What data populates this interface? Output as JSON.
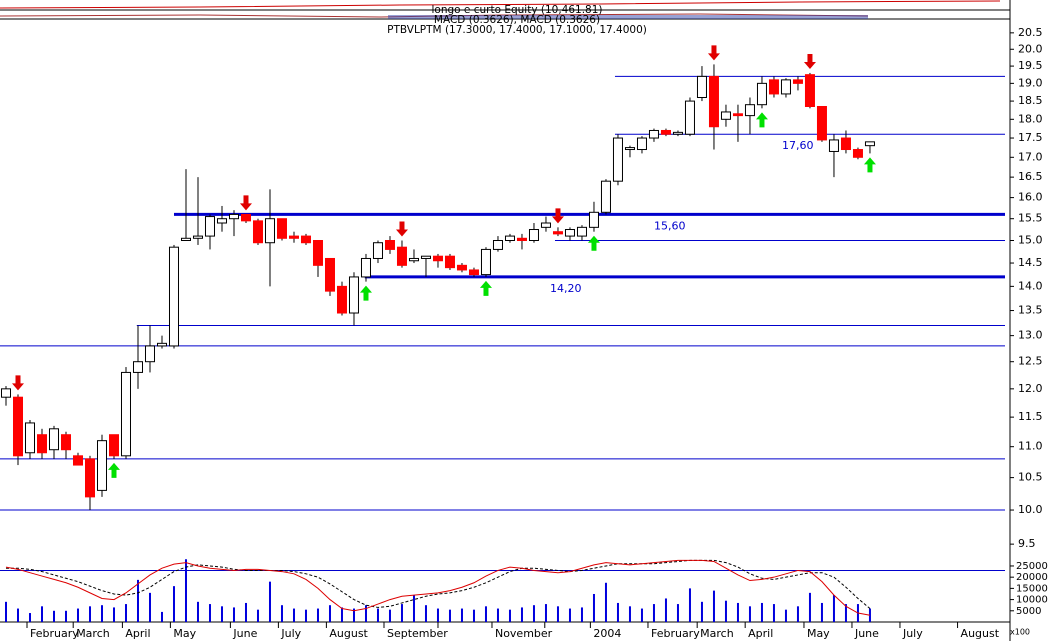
{
  "chart_data": {
    "type": "candlestick",
    "title": "longo e curto Equity (10,461.81)",
    "subtitle": "MACD (0.3626), MACD (0.3626)",
    "series_label": "PTBVLPTM (17.3000, 17.4000, 17.1000, 17.4000)",
    "log_scale": true,
    "xlim": [
      -0.5,
      83.67
    ],
    "xticks": [
      {
        "value": 1.75,
        "label": "February"
      },
      {
        "value": 5.6,
        "label": "March"
      },
      {
        "value": 9.7,
        "label": "April"
      },
      {
        "value": 13.7,
        "label": "May"
      },
      {
        "value": 18.7,
        "label": "June"
      },
      {
        "value": 22.7,
        "label": "July"
      },
      {
        "value": 26.7,
        "label": "August"
      },
      {
        "value": 31.5,
        "label": "September"
      },
      {
        "value": 36,
        "label": null
      },
      {
        "value": 40.5,
        "label": "November"
      },
      {
        "value": 44.9,
        "label": null
      },
      {
        "value": 48.7,
        "label": "2004"
      },
      {
        "value": 53.5,
        "label": "February"
      },
      {
        "value": 57.6,
        "label": "March"
      },
      {
        "value": 61.6,
        "label": "April"
      },
      {
        "value": 66.5,
        "label": "May"
      },
      {
        "value": 70.5,
        "label": "June"
      },
      {
        "value": 74.5,
        "label": "July"
      },
      {
        "value": 79.3,
        "label": "August"
      }
    ],
    "ylim": [
      8.45,
      20.9
    ],
    "yticks": [
      20.5,
      {
        "value": 20,
        "label": "20.0"
      },
      19.5,
      {
        "value": 19,
        "label": "19.0"
      },
      18.5,
      {
        "value": 18,
        "label": "18.0"
      },
      17.5,
      {
        "value": 17,
        "label": "17.0"
      },
      16.5,
      {
        "value": 16,
        "label": "16.0"
      },
      15.5,
      {
        "value": 15,
        "label": "15.0"
      },
      14.5,
      {
        "value": 14,
        "label": "14.0"
      },
      13.5,
      {
        "value": 13,
        "label": "13.0"
      },
      12.5,
      {
        "value": 12,
        "label": "12.0"
      },
      11.5,
      {
        "value": 11,
        "label": "11.0"
      },
      10.5,
      {
        "value": 10,
        "label": "10.0"
      },
      9.5
    ],
    "up_color": "#ffffff",
    "down_color": "#ff0000",
    "open": [
      11.85,
      11.85,
      10.9,
      11.2,
      10.95,
      11.2,
      10.85,
      10.8,
      10.3,
      11.2,
      10.85,
      12.3,
      12.5,
      12.8,
      12.8,
      15.0,
      15.05,
      15.1,
      15.4,
      15.5,
      15.6,
      15.45,
      14.95,
      15.5,
      15.1,
      15.1,
      15.0,
      14.6,
      14.0,
      13.45,
      14.2,
      14.6,
      15.0,
      14.85,
      14.55,
      14.6,
      14.65,
      14.65,
      14.45,
      14.35,
      14.25,
      14.8,
      15.0,
      15.05,
      15.0,
      15.3,
      15.2,
      15.1,
      15.1,
      15.3,
      15.65,
      16.4,
      17.2,
      17.2,
      17.5,
      17.7,
      17.6,
      17.6,
      18.6,
      19.2,
      18.0,
      18.15,
      18.1,
      18.4,
      19.1,
      18.7,
      19.1,
      19.25,
      18.35,
      17.15,
      17.5,
      17.2,
      17.3
    ],
    "high": [
      12.05,
      11.9,
      11.45,
      11.3,
      11.35,
      11.25,
      10.9,
      10.85,
      11.2,
      11.2,
      12.4,
      13.2,
      13.2,
      13.0,
      14.9,
      16.7,
      16.5,
      15.6,
      15.8,
      15.7,
      15.6,
      15.5,
      16.2,
      15.5,
      15.2,
      15.15,
      15.0,
      14.6,
      14.1,
      14.3,
      14.7,
      15.0,
      15.1,
      15.0,
      14.8,
      14.65,
      14.7,
      14.7,
      14.5,
      14.4,
      14.85,
      15.1,
      15.15,
      15.15,
      15.4,
      15.55,
      15.3,
      15.3,
      15.35,
      15.9,
      16.45,
      17.6,
      17.3,
      17.55,
      17.75,
      17.75,
      17.7,
      18.6,
      19.5,
      19.55,
      18.4,
      18.4,
      18.6,
      19.2,
      19.2,
      19.15,
      19.2,
      19.3,
      18.35,
      17.6,
      17.7,
      17.25,
      17.4
    ],
    "low": [
      11.7,
      10.7,
      10.8,
      10.8,
      10.8,
      10.8,
      10.7,
      10.0,
      10.2,
      10.8,
      10.8,
      12.0,
      12.3,
      12.75,
      12.75,
      15.0,
      14.9,
      14.8,
      15.2,
      15.1,
      15.4,
      14.9,
      14.0,
      15.0,
      14.95,
      14.9,
      14.2,
      13.8,
      13.4,
      13.2,
      14.1,
      14.5,
      14.7,
      14.4,
      14.5,
      14.2,
      14.4,
      14.35,
      14.3,
      14.2,
      14.2,
      14.75,
      14.95,
      14.8,
      14.95,
      15.2,
      15.1,
      15.0,
      15.0,
      15.2,
      15.6,
      16.3,
      17.0,
      17.1,
      17.4,
      17.55,
      17.55,
      17.55,
      18.5,
      17.2,
      17.8,
      17.4,
      17.6,
      18.3,
      18.6,
      18.6,
      18.8,
      18.3,
      17.4,
      16.5,
      17.1,
      16.95,
      17.1
    ],
    "close": [
      12.0,
      10.85,
      11.4,
      10.9,
      11.3,
      10.95,
      10.7,
      10.2,
      11.1,
      10.85,
      12.3,
      12.5,
      12.8,
      12.85,
      14.85,
      15.05,
      15.1,
      15.55,
      15.5,
      15.6,
      15.45,
      14.95,
      15.5,
      15.05,
      15.05,
      14.95,
      14.45,
      13.9,
      13.45,
      14.2,
      14.6,
      14.95,
      14.8,
      14.45,
      14.6,
      14.65,
      14.55,
      14.4,
      14.35,
      14.25,
      14.8,
      15.0,
      15.1,
      15.0,
      15.25,
      15.4,
      15.15,
      15.25,
      15.3,
      15.65,
      16.4,
      17.5,
      17.25,
      17.5,
      17.7,
      17.6,
      17.65,
      18.5,
      19.2,
      17.8,
      18.2,
      18.1,
      18.4,
      19.0,
      18.7,
      19.1,
      19.0,
      18.35,
      17.45,
      17.45,
      17.2,
      17.0,
      17.4
    ],
    "sell_signals": [
      1,
      20,
      33,
      46,
      59,
      67
    ],
    "buy_signals": [
      9,
      30,
      40,
      49,
      63,
      72
    ],
    "signal_colors": {
      "sell": "#e00000",
      "buy": "#00e000"
    },
    "line_color": "#0000cc",
    "hlines": [
      {
        "value": 19.2,
        "from": 50.75,
        "style": "thin"
      },
      {
        "value": 17.6,
        "from": 50.75,
        "style": "thin",
        "label": "17,60"
      },
      {
        "value": 15.6,
        "from": 14,
        "style": "thick",
        "label": "15,60"
      },
      {
        "value": 15.0,
        "from": 45.75,
        "style": "thin"
      },
      {
        "value": 14.2,
        "from": 29.9,
        "style": "thick",
        "label": "14,20"
      },
      {
        "value": 13.2,
        "from": 10.9,
        "style": "thin"
      },
      {
        "value": 12.8,
        "from": -0.5,
        "style": "thin"
      },
      {
        "value": 10.8,
        "from": -0.5,
        "style": "thin"
      },
      {
        "value": 10.0,
        "from": -0.5,
        "style": "thin"
      }
    ],
    "volume_unit": "x100",
    "volume_ylim": [
      0,
      29000
    ],
    "volume_yticks": [
      25000,
      20000,
      15000,
      10000,
      5000
    ],
    "volume_level": 23000,
    "volume": {
      "color": "#0000dd",
      "values": [
        9000,
        6000,
        4000,
        7000,
        5000,
        5000,
        6000,
        7000,
        7500,
        6500,
        8000,
        18800,
        13000,
        4500,
        16000,
        28000,
        9000,
        8000,
        7000,
        6500,
        8500,
        5500,
        18000,
        7500,
        6000,
        5500,
        6000,
        7500,
        6500,
        6000,
        7500,
        6000,
        5500,
        8000,
        12000,
        7500,
        6000,
        5500,
        6000,
        5500,
        7000,
        6000,
        5500,
        6500,
        7500,
        8000,
        7000,
        6000,
        6500,
        12500,
        17500,
        8500,
        7000,
        6000,
        8000,
        10500,
        8000,
        15000,
        9000,
        14000,
        9500,
        8500,
        7000,
        8500,
        8000,
        5500,
        7000,
        13000,
        8500,
        12000,
        8000,
        8000,
        6000
      ]
    },
    "oscillator": {
      "color": "#dd0000",
      "values": [
        24500,
        23500,
        22000,
        20500,
        19000,
        17500,
        15500,
        13000,
        10500,
        10000,
        13000,
        17000,
        21000,
        24000,
        25800,
        26500,
        25000,
        24000,
        23500,
        23000,
        23500,
        23500,
        23000,
        22500,
        21500,
        19000,
        15000,
        10000,
        6000,
        5000,
        6000,
        8000,
        10000,
        11500,
        12000,
        12500,
        13000,
        14000,
        15500,
        17500,
        20500,
        23000,
        24500,
        24000,
        23000,
        22500,
        22000,
        22500,
        24000,
        25500,
        26500,
        26000,
        25500,
        26000,
        26500,
        27000,
        27500,
        27500,
        27500,
        27000,
        24000,
        21000,
        18500,
        19000,
        20000,
        21500,
        23000,
        22500,
        18000,
        12000,
        7000,
        4000,
        3000
      ]
    },
    "signal_line": {
      "color": "#000000",
      "values": [
        24000,
        24000,
        23500,
        22500,
        21000,
        19500,
        18000,
        16000,
        14000,
        12500,
        12000,
        13000,
        15500,
        19000,
        22500,
        24500,
        25500,
        25000,
        24500,
        23500,
        23000,
        23000,
        23000,
        23000,
        22500,
        21500,
        20000,
        17000,
        13500,
        10000,
        7500,
        6500,
        7000,
        8500,
        10000,
        11500,
        12500,
        13000,
        14000,
        15500,
        17500,
        20000,
        22500,
        24000,
        24000,
        23500,
        23000,
        22500,
        23000,
        24000,
        25000,
        26000,
        26000,
        26000,
        26000,
        26500,
        27000,
        27500,
        27500,
        27500,
        26500,
        24500,
        21500,
        19500,
        19000,
        20000,
        21000,
        22000,
        22000,
        20000,
        15500,
        10500,
        6000
      ]
    }
  }
}
